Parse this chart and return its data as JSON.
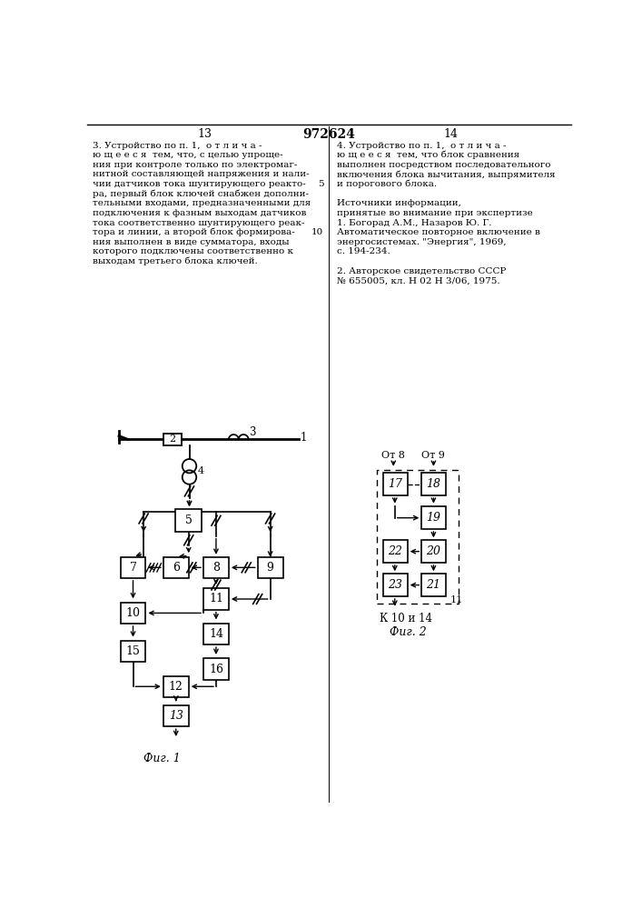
{
  "left_text": [
    "3. Устройство по п. 1,  о т л и ч а -",
    "ю щ е е с я  тем, что, с целью упроще-",
    "ния при контроле только по электромаг-",
    "нитной составляющей напряжения и нали-",
    "чии датчиков тока шунтирующего реакто-",
    "ра, первый блок ключей снабжен дополни-",
    "тельными входами, предназначенными для",
    "подключения к фазным выходам датчиков",
    "тока соответственно шунтирующего реак-",
    "тора и линии, а второй блок формирова-",
    "ния выполнен в виде сумматора, входы",
    "которого подключены соответственно к",
    "выходам третьего блока ключей."
  ],
  "left_line_numbers": {
    "4": "5",
    "9": "10"
  },
  "right_text": [
    "4. Устройство по п. 1,  о т л и ч а -",
    "ю щ е е с я  тем, что блок сравнения",
    "выполнен посредством последовательного",
    "включения блока вычитания, выпрямителя",
    "и порогового блока.",
    "",
    "Источники информации,",
    "принятые во внимание при экспертизе",
    "1. Богорад А.М., Назаров Ю. Г.",
    "Автоматическое повторное включение в",
    "энергосистемах. \"Энергия\", 1969,",
    "с. 194-234.",
    "",
    "2. Авторское свидетельство СССР",
    "№ 655005, кл. Н 02 Н 3/06, 1975."
  ],
  "background": "#ffffff",
  "text_color": "#000000",
  "line_color": "#000000"
}
